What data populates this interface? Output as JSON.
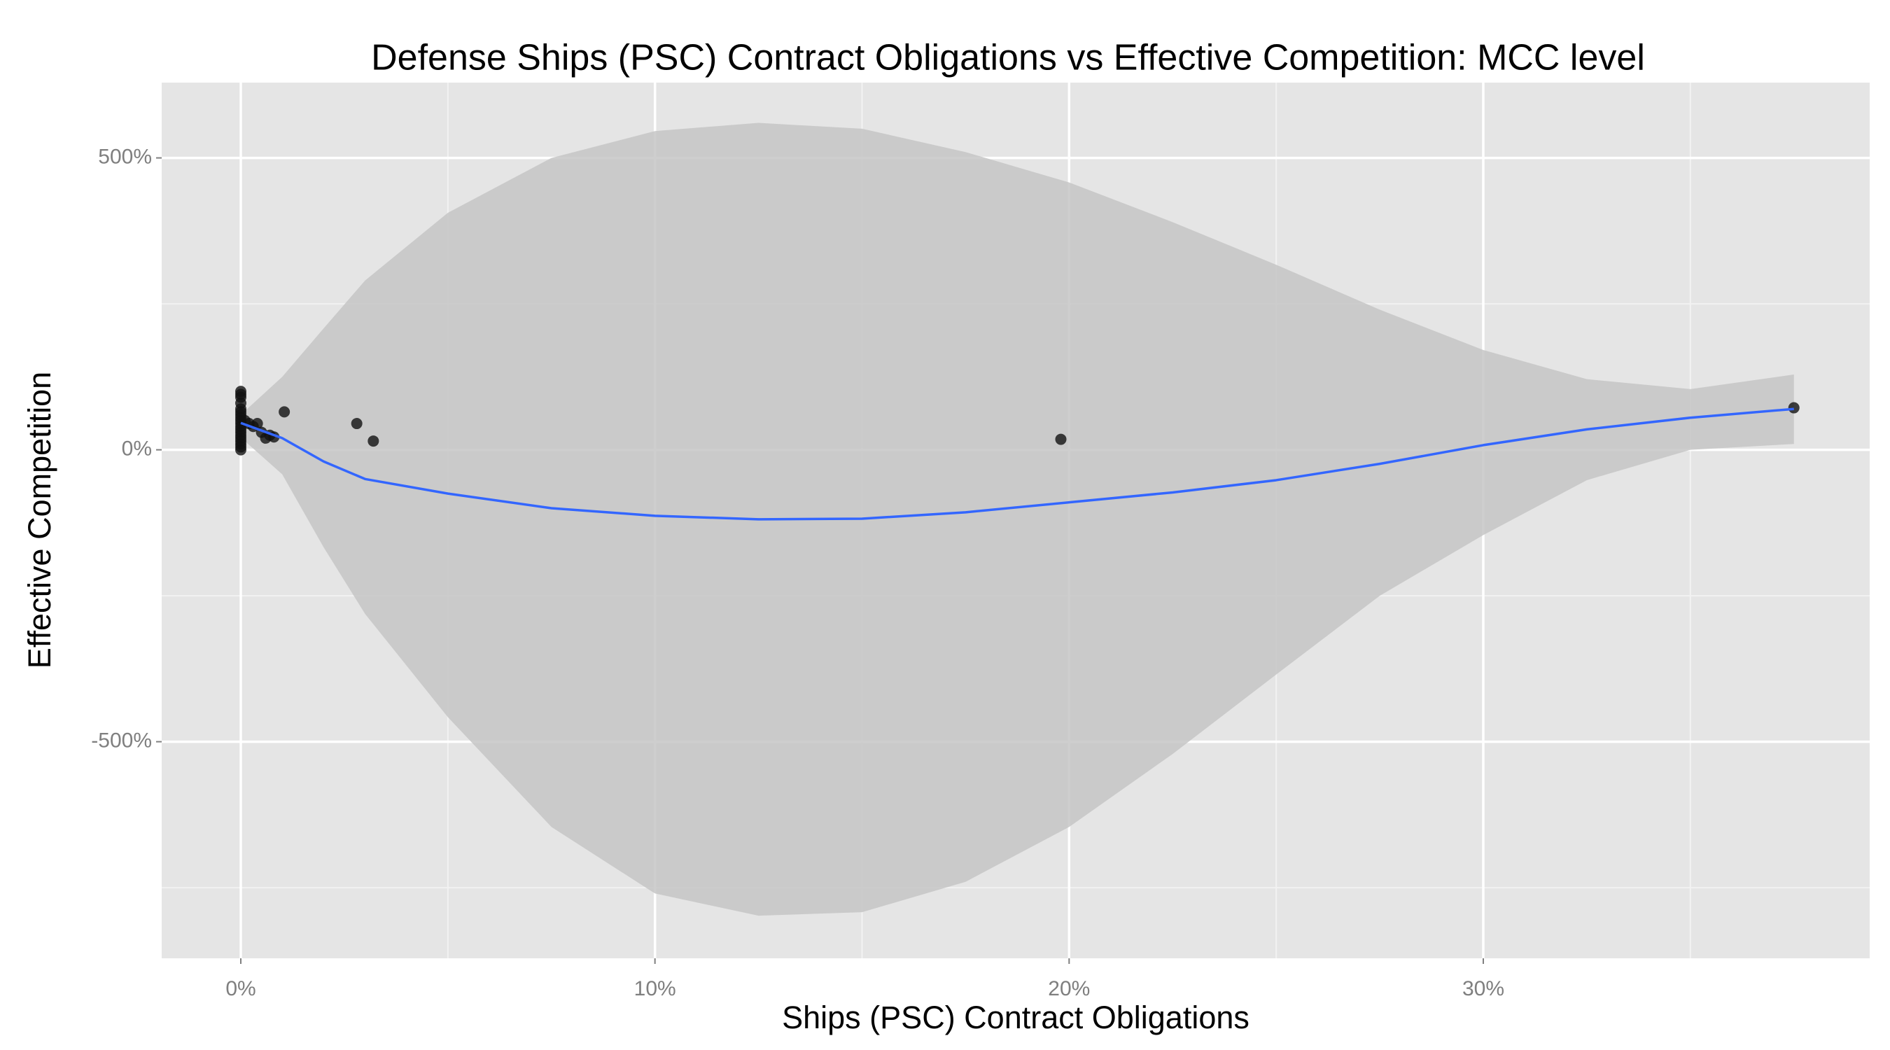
{
  "chart_data": {
    "type": "scatter",
    "title": "Defense Ships (PSC) Contract Obligations vs Effective Competition: MCC level",
    "x_label": "Ships (PSC) Contract Obligations",
    "y_label": "Effective Competition",
    "xlim": [
      -1.91,
      39.33
    ],
    "ylim": [
      -871,
      629
    ],
    "xticks": [
      {
        "value": 0,
        "label": "0%"
      },
      {
        "value": 10,
        "label": "10%"
      },
      {
        "value": 20,
        "label": "20%"
      },
      {
        "value": 30,
        "label": "30%"
      }
    ],
    "yticks": [
      {
        "value": -500,
        "label": "-500%"
      },
      {
        "value": 0,
        "label": "0%"
      },
      {
        "value": 500,
        "label": "500%"
      }
    ],
    "x_minor_grid": [
      5,
      15,
      25,
      35
    ],
    "y_minor_grid": [
      -750,
      -250,
      250
    ],
    "grid": true,
    "points": {
      "color": "#111111",
      "x": [
        0,
        0,
        0,
        0,
        0,
        0,
        0,
        0,
        0,
        0,
        0,
        0,
        0,
        0,
        0,
        0,
        0,
        0,
        0,
        0.1,
        0.2,
        0.3,
        0.4,
        0.5,
        0.6,
        0.7,
        0.8,
        1.05,
        2.8,
        3.2,
        19.8,
        37.5
      ],
      "y": [
        100,
        95,
        90,
        80,
        70,
        65,
        60,
        55,
        50,
        45,
        40,
        35,
        30,
        25,
        20,
        15,
        10,
        5,
        0,
        50,
        45,
        40,
        45,
        30,
        20,
        25,
        22,
        65,
        45,
        15,
        18,
        72
      ]
    },
    "smooth": {
      "color": "#3366ff",
      "band_color": "#c6c6c6",
      "x": [
        0,
        1,
        2,
        3,
        5,
        7.5,
        10,
        12.5,
        15,
        17.5,
        20,
        22.5,
        25,
        27.5,
        30,
        32.5,
        35,
        37.5
      ],
      "y": [
        46,
        20,
        -20,
        -50,
        -75,
        -100,
        -113,
        -119,
        -118,
        -107,
        -90,
        -73,
        -52,
        -24,
        8,
        35,
        55,
        70
      ],
      "lower": [
        21,
        -42,
        -167,
        -281,
        -458,
        -646,
        -760,
        -798,
        -792,
        -740,
        -646,
        -521,
        -385,
        -250,
        -146,
        -52,
        0,
        10
      ],
      "upper": [
        60,
        125,
        208,
        290,
        406,
        500,
        546,
        560,
        550,
        510,
        458,
        390,
        317,
        240,
        171,
        121,
        104,
        129
      ]
    }
  }
}
